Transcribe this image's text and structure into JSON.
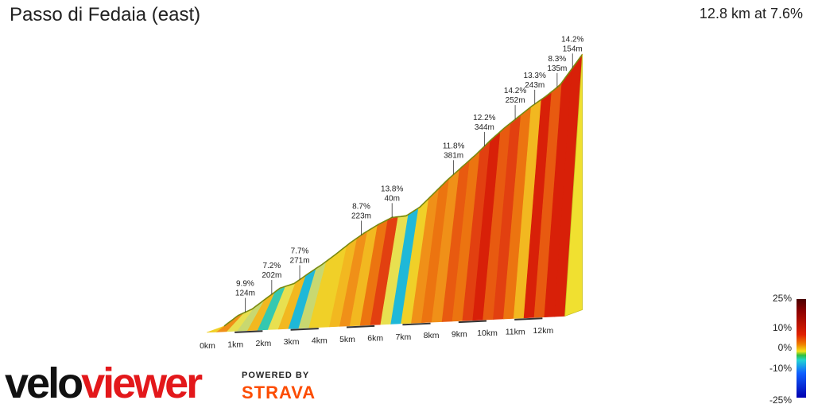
{
  "header": {
    "title": "Passo di Fedaia (east)",
    "summary": "12.8 km at 7.6%"
  },
  "logo": {
    "text": "veloviewer"
  },
  "powered": {
    "line1": "POWERED BY",
    "line2": "STRAVA"
  },
  "legend": {
    "labels": [
      "25%",
      "10%",
      "0%",
      "-10%",
      "-25%"
    ],
    "values": [
      25,
      10,
      0,
      -10,
      -25
    ]
  },
  "colors": {
    "brand_red": "#e3181b",
    "strava_orange": "#fc4c02",
    "profile_line": "#7a8a10"
  },
  "chart_data": {
    "type": "area",
    "title": "Passo di Fedaia (east)",
    "xlabel": "",
    "ylabel": "",
    "x_unit": "km",
    "xlim": [
      0,
      12.8
    ],
    "x_ticks": [
      "0km",
      "1km",
      "2km",
      "3km",
      "4km",
      "5km",
      "6km",
      "7km",
      "8km",
      "9km",
      "10km",
      "11km",
      "12km"
    ],
    "profile_km": [
      0,
      0.5,
      1.0,
      1.5,
      2.0,
      2.5,
      3.0,
      3.5,
      4.0,
      4.5,
      5.0,
      5.5,
      6.0,
      6.5,
      7.0,
      7.5,
      8.0,
      8.5,
      9.0,
      9.5,
      10.0,
      10.5,
      11.0,
      11.5,
      12.0,
      12.8
    ],
    "profile_elev_m": [
      0,
      38,
      60,
      98,
      135,
      150,
      185,
      218,
      255,
      295,
      330,
      360,
      385,
      388,
      420,
      470,
      520,
      565,
      610,
      660,
      705,
      745,
      785,
      820,
      860,
      973
    ],
    "segments_gradient_pct": [
      5,
      9.9,
      4,
      2,
      7.2,
      -2,
      3,
      7.7,
      -5,
      2,
      5,
      6,
      8.7,
      9,
      8,
      11,
      13.8,
      3,
      -8,
      6,
      9,
      11.8,
      10,
      12.2,
      11,
      13,
      14.2,
      12,
      13.3,
      11,
      8.3,
      14,
      12,
      14.2,
      15
    ],
    "annotations": [
      {
        "km": 0.75,
        "pct": "9.9%",
        "len": "124m"
      },
      {
        "km": 1.7,
        "pct": "7.2%",
        "len": "202m"
      },
      {
        "km": 2.7,
        "pct": "7.7%",
        "len": "271m"
      },
      {
        "km": 4.9,
        "pct": "8.7%",
        "len": "223m"
      },
      {
        "km": 6.0,
        "pct": "13.8%",
        "len": "40m"
      },
      {
        "km": 8.2,
        "pct": "11.8%",
        "len": "381m"
      },
      {
        "km": 9.3,
        "pct": "12.2%",
        "len": "344m"
      },
      {
        "km": 10.4,
        "pct": "14.2%",
        "len": "252m"
      },
      {
        "km": 11.1,
        "pct": "13.3%",
        "len": "243m"
      },
      {
        "km": 11.9,
        "pct": "8.3%",
        "len": "135m"
      },
      {
        "km": 12.45,
        "pct": "14.2%",
        "len": "154m"
      }
    ]
  }
}
